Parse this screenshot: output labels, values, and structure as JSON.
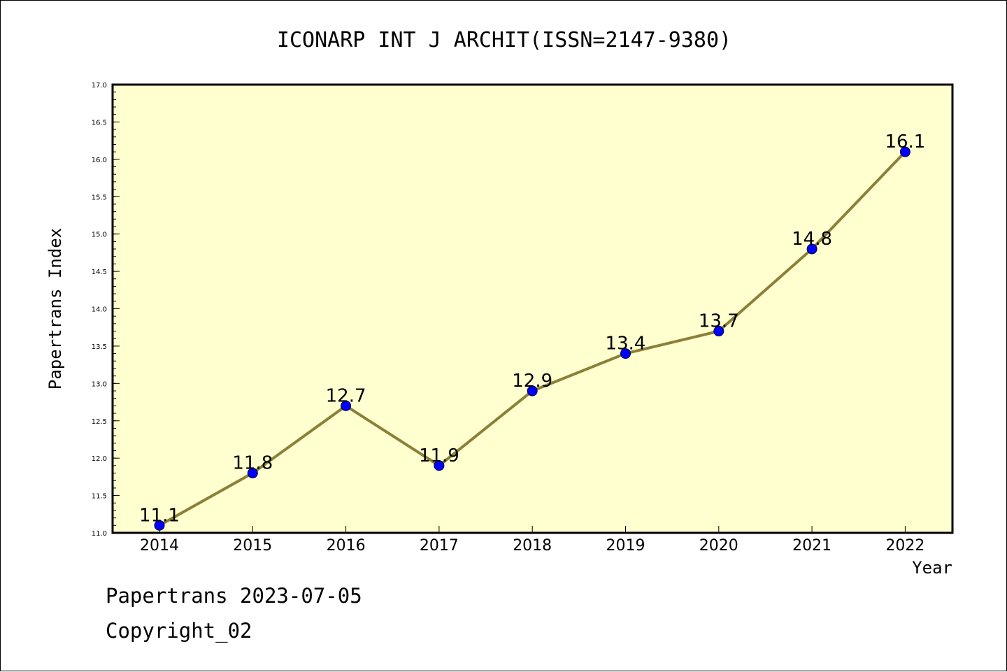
{
  "chart_data": {
    "type": "line",
    "title": "ICONARP INT J ARCHIT(ISSN=2147-9380)",
    "xlabel": "Year",
    "ylabel": "Papertrans Index",
    "categories": [
      "2014",
      "2015",
      "2016",
      "2017",
      "2018",
      "2019",
      "2020",
      "2021",
      "2022"
    ],
    "values": [
      11.1,
      11.8,
      12.7,
      11.9,
      12.9,
      13.4,
      13.7,
      14.8,
      16.1
    ],
    "data_labels": [
      "11.1",
      "11.8",
      "12.7",
      "11.9",
      "12.9",
      "13.4",
      "13.7",
      "14.8",
      "16.1"
    ],
    "ylim": [
      11.0,
      17.0
    ],
    "yticks": [
      "11.0",
      "11.5",
      "12.0",
      "12.5",
      "13.0",
      "13.5",
      "14.0",
      "14.5",
      "15.0",
      "15.5",
      "16.0",
      "16.5",
      "17.0"
    ],
    "grid": false,
    "colors": {
      "plot_background": "#ffffd0",
      "line": "#8b8038",
      "marker": "#0000ff"
    }
  },
  "footer": {
    "line1": "Papertrans 2023-07-05",
    "line2": "Copyright_02"
  }
}
